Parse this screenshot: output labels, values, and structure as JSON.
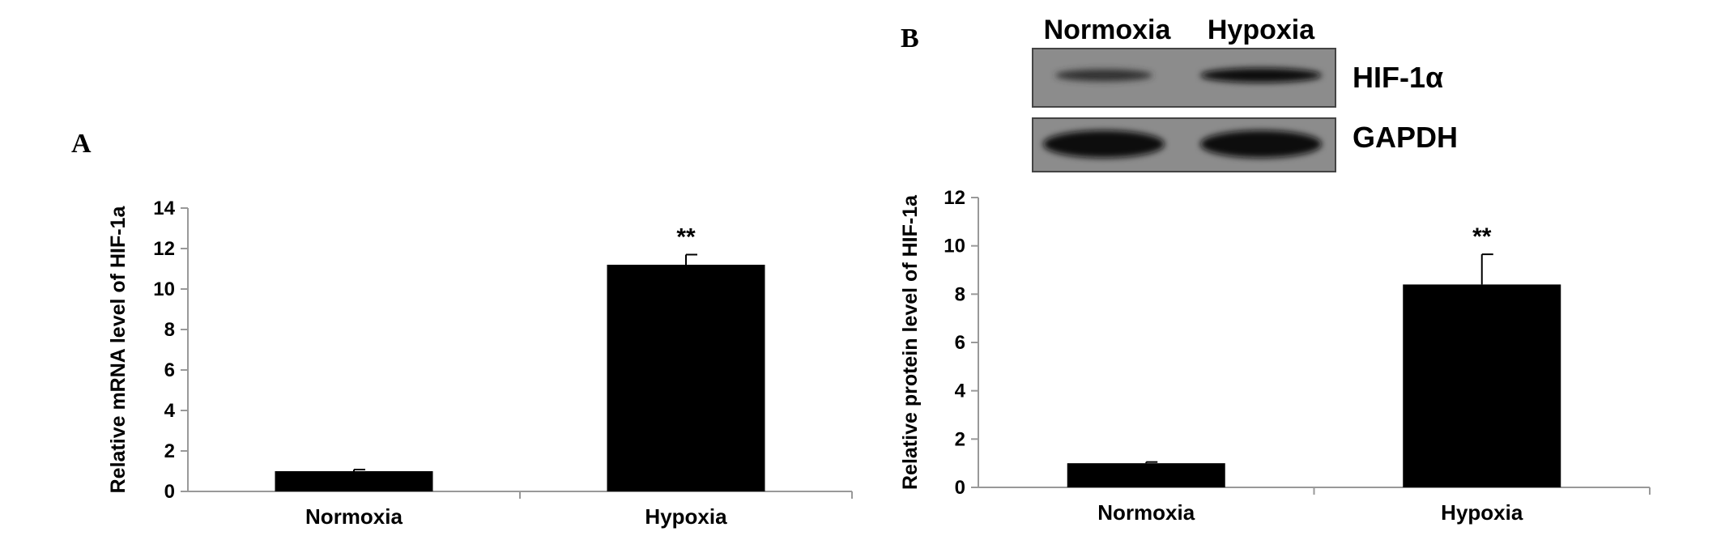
{
  "panels": {
    "a": {
      "letter": "A"
    },
    "b": {
      "letter": "B"
    }
  },
  "blot": {
    "columns": [
      "Normoxia",
      "Hypoxia"
    ],
    "rows": [
      {
        "label": "HIF-1α",
        "band_intensity": [
          0.55,
          1.0
        ]
      },
      {
        "label": "GAPDH",
        "band_intensity": [
          1.0,
          1.0
        ]
      }
    ]
  },
  "chart_data": [
    {
      "type": "bar",
      "categories": [
        "Normoxia",
        "Hypoxia"
      ],
      "values": [
        1.0,
        11.2
      ],
      "errors": [
        0.08,
        0.5
      ],
      "annotations": [
        "",
        "**"
      ],
      "title": "",
      "xlabel": "",
      "ylabel": "Relative mRNA level of HIF-1a",
      "ylim": [
        0,
        14
      ],
      "yticks": [
        0,
        2,
        4,
        6,
        8,
        10,
        12,
        14
      ],
      "grid": false,
      "bar_color": "#000000"
    },
    {
      "type": "bar",
      "categories": [
        "Normoxia",
        "Hypoxia"
      ],
      "values": [
        1.0,
        8.4
      ],
      "errors": [
        0.05,
        1.25
      ],
      "annotations": [
        "",
        "**"
      ],
      "title": "",
      "xlabel": "",
      "ylabel": "Relative protein level of HIF-1a",
      "ylim": [
        0,
        12
      ],
      "yticks": [
        0,
        2,
        4,
        6,
        8,
        10,
        12
      ],
      "grid": false,
      "bar_color": "#000000"
    }
  ]
}
